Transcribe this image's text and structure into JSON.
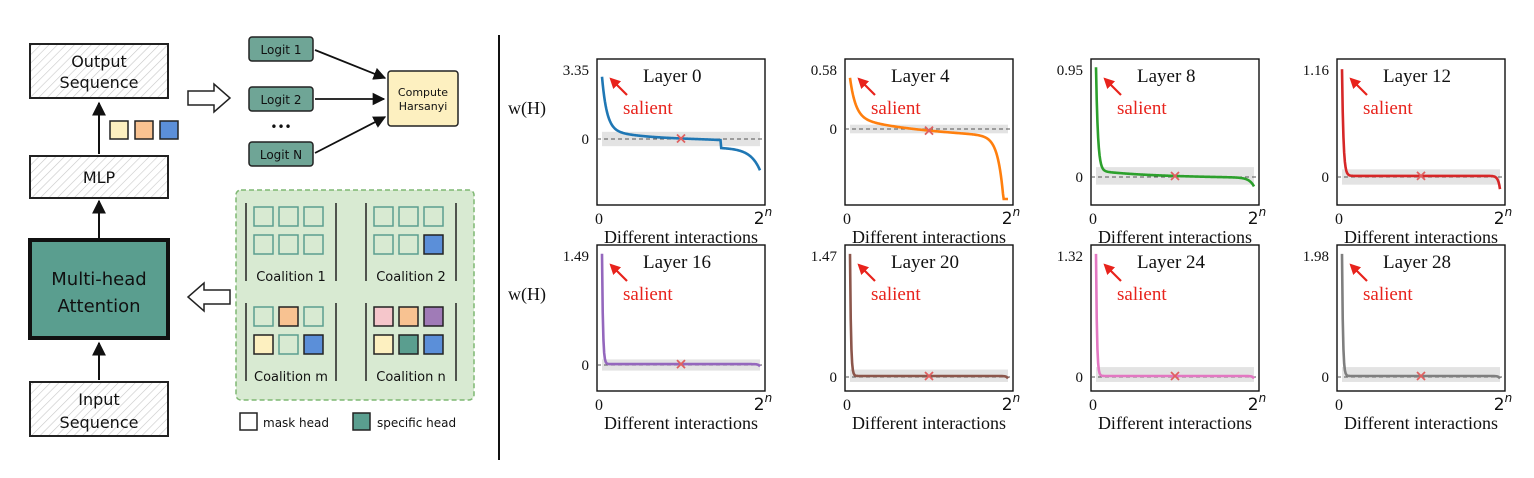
{
  "architecture": {
    "output_sequence": [
      "Output",
      "Sequence"
    ],
    "mlp": "MLP",
    "attention": [
      "Multi-head",
      "Attention"
    ],
    "input_sequence": [
      "Input",
      "Sequence"
    ],
    "logits": [
      "Logit 1",
      "Logit 2",
      "Logit N"
    ],
    "ellipsis": "•••",
    "compute": [
      "Compute",
      "Harsanyi"
    ],
    "coalitions": [
      "Coalition 1",
      "Coalition 2",
      "Coalition m",
      "Coalition n"
    ],
    "legend_mask": "mask head",
    "legend_specific": "specific head",
    "colors": {
      "head_yellow": "#fdf0c0",
      "head_orange": "#f8c291",
      "head_blue": "#5b8fd9",
      "head_pink": "#f5c6cb",
      "head_purple": "#a07bb7",
      "head_teal": "#5a9e8f",
      "attention_fill": "#5a9e8f",
      "logit_fill": "#6fa596",
      "compute_fill": "#fdf0c0",
      "coalition_panel": "#d8ead2"
    }
  },
  "chart_data": [
    {
      "type": "line",
      "title": "Layer 0",
      "annotation": "salient",
      "ylabel": "w(H)",
      "xlabel": "Different interactions",
      "x_ticks": [
        "0",
        "2^n"
      ],
      "y_ticks": [
        "3.35",
        "0"
      ],
      "ymax": 3.35,
      "color": "#1f77b4"
    },
    {
      "type": "line",
      "title": "Layer 4",
      "annotation": "salient",
      "ylabel": "",
      "xlabel": "Different interactions",
      "x_ticks": [
        "0",
        "2^n"
      ],
      "y_ticks": [
        "0.58",
        "0"
      ],
      "ymax": 0.58,
      "color": "#ff7f0e"
    },
    {
      "type": "line",
      "title": "Layer 8",
      "annotation": "salient",
      "ylabel": "",
      "xlabel": "Different interactions",
      "x_ticks": [
        "0",
        "2^n"
      ],
      "y_ticks": [
        "0.95",
        "0"
      ],
      "ymax": 0.95,
      "color": "#2ca02c"
    },
    {
      "type": "line",
      "title": "Layer 12",
      "annotation": "salient",
      "ylabel": "",
      "xlabel": "Different interactions",
      "x_ticks": [
        "0",
        "2^n"
      ],
      "y_ticks": [
        "1.16",
        "0"
      ],
      "ymax": 1.16,
      "color": "#d62728"
    },
    {
      "type": "line",
      "title": "Layer 16",
      "annotation": "salient",
      "ylabel": "w(H)",
      "xlabel": "Different interactions",
      "x_ticks": [
        "0",
        "2^n"
      ],
      "y_ticks": [
        "1.49",
        "0"
      ],
      "ymax": 1.49,
      "color": "#9467bd"
    },
    {
      "type": "line",
      "title": "Layer 20",
      "annotation": "salient",
      "ylabel": "",
      "xlabel": "Different interactions",
      "x_ticks": [
        "0",
        "2^n"
      ],
      "y_ticks": [
        "1.47",
        "0"
      ],
      "ymax": 1.47,
      "color": "#8c564b"
    },
    {
      "type": "line",
      "title": "Layer 24",
      "annotation": "salient",
      "ylabel": "",
      "xlabel": "Different interactions",
      "x_ticks": [
        "0",
        "2^n"
      ],
      "y_ticks": [
        "1.32",
        "0"
      ],
      "ymax": 1.32,
      "color": "#e377c2"
    },
    {
      "type": "line",
      "title": "Layer 28",
      "annotation": "salient",
      "ylabel": "",
      "xlabel": "Different interactions",
      "x_ticks": [
        "0",
        "2^n"
      ],
      "y_ticks": [
        "1.98",
        "0"
      ],
      "ymax": 1.98,
      "color": "#7f7f7f"
    }
  ]
}
